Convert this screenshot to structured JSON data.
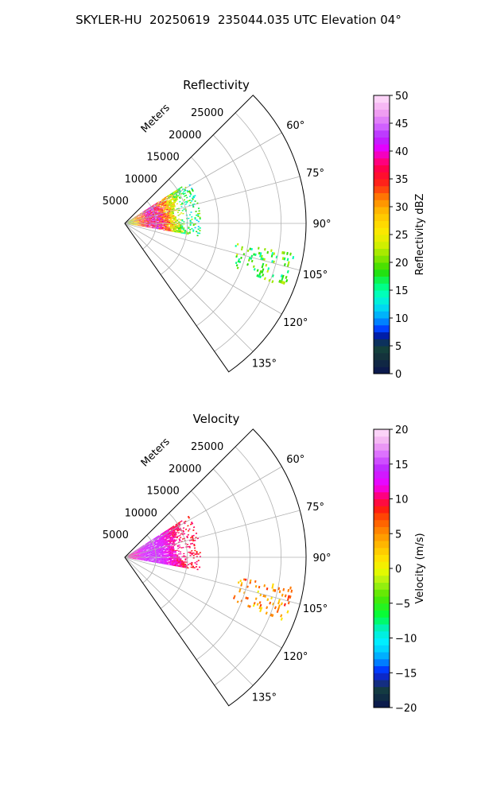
{
  "title": "SKYLER-HU  20250619  235044.035 UTC Elevation 04°",
  "colors": {
    "grid": "#b0b0b0",
    "frame": "#000000"
  },
  "chart_data": [
    {
      "type": "heatmap",
      "title": "Reflectivity",
      "projection": "polar sector (PPI)",
      "radial_unit_label": "Meters",
      "r_ticks": [
        5000,
        10000,
        15000,
        20000,
        25000
      ],
      "r_tick_labels": [
        "5000",
        "10000",
        "15000",
        "20000",
        "25000"
      ],
      "r_max": 29000,
      "theta_range_deg": [
        45,
        145
      ],
      "theta_ticks": [
        60,
        75,
        90,
        105,
        120,
        135
      ],
      "theta_tick_labels": [
        "60°",
        "75°",
        "90°",
        "105°",
        "120°",
        "135°"
      ],
      "grid": true,
      "colorbar": {
        "label": "Reflectivity dBZ",
        "range": [
          0,
          50
        ],
        "ticks": [
          0,
          5,
          10,
          15,
          20,
          25,
          30,
          35,
          40,
          45,
          50
        ],
        "tick_labels": [
          "0",
          "5",
          "10",
          "15",
          "20",
          "25",
          "30",
          "35",
          "40",
          "45",
          "50"
        ],
        "colormap": "HomeyerRainbow-like (navy→blue→cyan→green→yellow→orange→red→magenta→pink)"
      },
      "echo_regions": [
        {
          "theta_deg": [
            57,
            100
          ],
          "range_m": [
            500,
            12000
          ],
          "value_range": [
            10,
            45
          ],
          "description": "main storm echo"
        },
        {
          "theta_deg": [
            100,
            112
          ],
          "range_m": [
            18000,
            27500
          ],
          "value_range": [
            12,
            25
          ],
          "description": "scattered light echoes"
        }
      ]
    },
    {
      "type": "heatmap",
      "title": "Velocity",
      "projection": "polar sector (PPI)",
      "radial_unit_label": "Meters",
      "r_ticks": [
        5000,
        10000,
        15000,
        20000,
        25000
      ],
      "r_tick_labels": [
        "5000",
        "10000",
        "15000",
        "20000",
        "25000"
      ],
      "r_max": 29000,
      "theta_range_deg": [
        45,
        145
      ],
      "theta_ticks": [
        60,
        75,
        90,
        105,
        120,
        135
      ],
      "theta_tick_labels": [
        "60°",
        "75°",
        "90°",
        "105°",
        "120°",
        "135°"
      ],
      "grid": true,
      "colorbar": {
        "label": "Velocity (m/s)",
        "range": [
          -20,
          20
        ],
        "ticks": [
          -20,
          -15,
          -10,
          -5,
          0,
          5,
          10,
          15,
          20
        ],
        "tick_labels": [
          "−20",
          "−15",
          "−10",
          "−5",
          "0",
          "5",
          "10",
          "15",
          "20"
        ],
        "colormap": "diverging (navy→blue→cyan→green→yellow→orange→red→magenta→pink)"
      },
      "echo_regions": [
        {
          "theta_deg": [
            57,
            100
          ],
          "range_m": [
            500,
            12000
          ],
          "value_range": [
            8,
            15
          ],
          "description": "main storm echo, mostly receding"
        },
        {
          "theta_deg": [
            100,
            112
          ],
          "range_m": [
            18000,
            27500
          ],
          "value_range": [
            0,
            10
          ],
          "description": "scattered light echoes"
        }
      ]
    }
  ]
}
